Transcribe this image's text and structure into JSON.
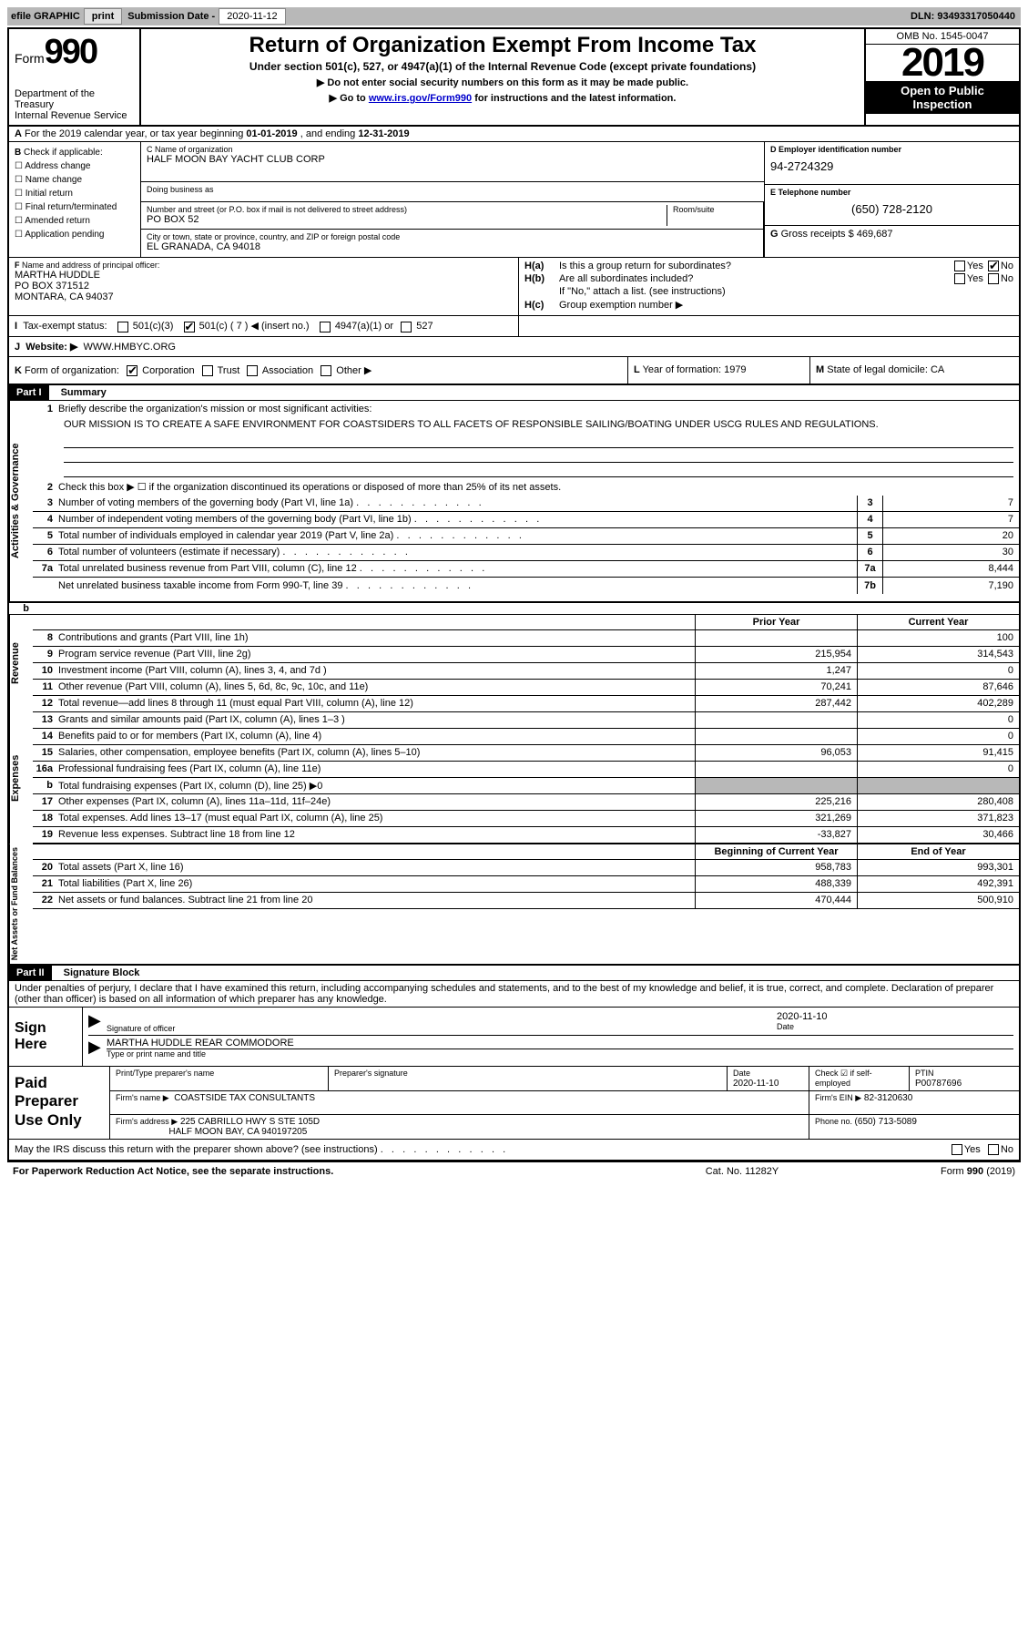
{
  "topbar": {
    "efile_label": "efile GRAPHIC",
    "print_btn": "print",
    "sub_label": "Submission Date -",
    "sub_date": "2020-11-12",
    "dln": "DLN: 93493317050440"
  },
  "header": {
    "form_word": "Form",
    "form_num": "990",
    "dept": "Department of the Treasury\nInternal Revenue Service",
    "title": "Return of Organization Exempt From Income Tax",
    "sub1": "Under section 501(c), 527, or 4947(a)(1) of the Internal Revenue Code (except private foundations)",
    "sub2": "▶ Do not enter social security numbers on this form as it may be made public.",
    "sub3_pre": "▶ Go to ",
    "sub3_link": "www.irs.gov/Form990",
    "sub3_post": " for instructions and the latest information.",
    "omb": "OMB No. 1545-0047",
    "year": "2019",
    "open1": "Open to Public",
    "open2": "Inspection"
  },
  "row_a": {
    "label": "A",
    "text_pre": "For the 2019 calendar year, or tax year beginning ",
    "begin": "01-01-2019",
    "mid": " , and ending ",
    "end": "12-31-2019"
  },
  "col_b": {
    "label": "B",
    "intro": " Check if applicable:",
    "opts": [
      "Address change",
      "Name change",
      "Initial return",
      "Final return/terminated",
      "Amended return",
      "Application pending"
    ]
  },
  "col_c": {
    "name_label": "C Name of organization",
    "name": "HALF MOON BAY YACHT CLUB CORP",
    "dba_label": "Doing business as",
    "street_label": "Number and street (or P.O. box if mail is not delivered to street address)",
    "street": "PO BOX 52",
    "room_label": "Room/suite",
    "city_label": "City or town, state or province, country, and ZIP or foreign postal code",
    "city": "EL GRANADA, CA  94018"
  },
  "col_d": {
    "ein_label": "D Employer identification number",
    "ein": "94-2724329",
    "phone_label": "E Telephone number",
    "phone": "(650) 728-2120",
    "gross_label": "G",
    "gross_text": " Gross receipts $ ",
    "gross": "469,687"
  },
  "col_f": {
    "label": "F",
    "text": " Name and address of principal officer:",
    "name": "MARTHA HUDDLE",
    "addr1": "PO BOX 371512",
    "addr2": "MONTARA, CA  94037"
  },
  "col_h": {
    "ha_lbl": "H(a)",
    "ha_txt": "Is this a group return for subordinates?",
    "hb_lbl": "H(b)",
    "hb_txt": "Are all subordinates included?",
    "hb_note": "If \"No,\" attach a list. (see instructions)",
    "hc_lbl": "H(c)",
    "hc_txt": "Group exemption number ▶",
    "yes": "Yes",
    "no": "No"
  },
  "row_i": {
    "label": "I",
    "text": "Tax-exempt status:",
    "o1": "501(c)(3)",
    "o2_pre": "501(c) ( ",
    "o2_num": "7",
    "o2_post": " ) ◀ (insert no.)",
    "o3": "4947(a)(1) or",
    "o4": "527"
  },
  "row_j": {
    "label": "J",
    "text": "Website: ▶",
    "url": "WWW.HMBYC.ORG"
  },
  "row_k": {
    "label": "K",
    "text": " Form of organization:",
    "o1": "Corporation",
    "o2": "Trust",
    "o3": "Association",
    "o4": "Other ▶",
    "l_label": "L",
    "l_text": " Year of formation: ",
    "l_val": "1979",
    "m_label": "M",
    "m_text": " State of legal domicile: ",
    "m_val": "CA"
  },
  "part1": {
    "hdr": "Part I",
    "title": "Summary",
    "tab_gov": "Activities & Governance",
    "tab_rev": "Revenue",
    "tab_exp": "Expenses",
    "tab_net": "Net Assets or Fund Balances",
    "l1_num": "1",
    "l1": "Briefly describe the organization's mission or most significant activities:",
    "mission": "OUR MISSION IS TO CREATE A SAFE ENVIRONMENT FOR COASTSIDERS TO ALL FACETS OF RESPONSIBLE SAILING/BOATING UNDER USCG RULES AND REGULATIONS.",
    "l2_num": "2",
    "l2": "Check this box ▶ ☐ if the organization discontinued its operations or disposed of more than 25% of its net assets.",
    "lines_ag": [
      {
        "n": "3",
        "t": "Number of voting members of the governing body (Part VI, line 1a)",
        "b": "3",
        "v": "7"
      },
      {
        "n": "4",
        "t": "Number of independent voting members of the governing body (Part VI, line 1b)",
        "b": "4",
        "v": "7"
      },
      {
        "n": "5",
        "t": "Total number of individuals employed in calendar year 2019 (Part V, line 2a)",
        "b": "5",
        "v": "20"
      },
      {
        "n": "6",
        "t": "Total number of volunteers (estimate if necessary)",
        "b": "6",
        "v": "30"
      },
      {
        "n": "7a",
        "t": "Total unrelated business revenue from Part VIII, column (C), line 12",
        "b": "7a",
        "v": "8,444"
      }
    ],
    "l7b_n": "",
    "l7b_t": "Net unrelated business taxable income from Form 990-T, line 39",
    "l7b_b": "7b",
    "l7b_v": "7,190",
    "col_prior": "Prior Year",
    "col_current": "Current Year",
    "col_begin": "Beginning of Current Year",
    "col_end": "End of Year",
    "rev": [
      {
        "n": "8",
        "t": "Contributions and grants (Part VIII, line 1h)",
        "c1": "",
        "c2": "100"
      },
      {
        "n": "9",
        "t": "Program service revenue (Part VIII, line 2g)",
        "c1": "215,954",
        "c2": "314,543"
      },
      {
        "n": "10",
        "t": "Investment income (Part VIII, column (A), lines 3, 4, and 7d )",
        "c1": "1,247",
        "c2": "0"
      },
      {
        "n": "11",
        "t": "Other revenue (Part VIII, column (A), lines 5, 6d, 8c, 9c, 10c, and 11e)",
        "c1": "70,241",
        "c2": "87,646"
      },
      {
        "n": "12",
        "t": "Total revenue—add lines 8 through 11 (must equal Part VIII, column (A), line 12)",
        "c1": "287,442",
        "c2": "402,289"
      }
    ],
    "exp": [
      {
        "n": "13",
        "t": "Grants and similar amounts paid (Part IX, column (A), lines 1–3 )",
        "c1": "",
        "c2": "0"
      },
      {
        "n": "14",
        "t": "Benefits paid to or for members (Part IX, column (A), line 4)",
        "c1": "",
        "c2": "0"
      },
      {
        "n": "15",
        "t": "Salaries, other compensation, employee benefits (Part IX, column (A), lines 5–10)",
        "c1": "96,053",
        "c2": "91,415"
      },
      {
        "n": "16a",
        "t": "Professional fundraising fees (Part IX, column (A), line 11e)",
        "c1": "",
        "c2": "0"
      },
      {
        "n": "b",
        "t": "Total fundraising expenses (Part IX, column (D), line 25) ▶0",
        "c1": "GREY",
        "c2": "GREY"
      },
      {
        "n": "17",
        "t": "Other expenses (Part IX, column (A), lines 11a–11d, 11f–24e)",
        "c1": "225,216",
        "c2": "280,408"
      },
      {
        "n": "18",
        "t": "Total expenses. Add lines 13–17 (must equal Part IX, column (A), line 25)",
        "c1": "321,269",
        "c2": "371,823"
      },
      {
        "n": "19",
        "t": "Revenue less expenses. Subtract line 18 from line 12",
        "c1": "-33,827",
        "c2": "30,466"
      }
    ],
    "net": [
      {
        "n": "20",
        "t": "Total assets (Part X, line 16)",
        "c1": "958,783",
        "c2": "993,301"
      },
      {
        "n": "21",
        "t": "Total liabilities (Part X, line 26)",
        "c1": "488,339",
        "c2": "492,391"
      },
      {
        "n": "22",
        "t": "Net assets or fund balances. Subtract line 21 from line 20",
        "c1": "470,444",
        "c2": "500,910"
      }
    ]
  },
  "part2": {
    "hdr": "Part II",
    "title": "Signature Block",
    "decl": "Under penalties of perjury, I declare that I have examined this return, including accompanying schedules and statements, and to the best of my knowledge and belief, it is true, correct, and complete. Declaration of preparer (other than officer) is based on all information of which preparer has any knowledge.",
    "sign_here": "Sign Here",
    "sig_officer_lbl": "Signature of officer",
    "sig_date": "2020-11-10",
    "date_lbl": "Date",
    "officer_name": "MARTHA HUDDLE  REAR COMMODORE",
    "officer_lbl": "Type or print name and title",
    "paid": "Paid Preparer Use Only",
    "p_name_lbl": "Print/Type preparer's name",
    "p_sig_lbl": "Preparer's signature",
    "p_date_lbl": "Date",
    "p_date": "2020-11-10",
    "p_check_lbl": "Check ☑ if self-employed",
    "p_ptin_lbl": "PTIN",
    "p_ptin": "P00787696",
    "firm_name_lbl": "Firm's name   ▶",
    "firm_name": "COASTSIDE TAX CONSULTANTS",
    "firm_ein_lbl": "Firm's EIN ▶",
    "firm_ein": "82-3120630",
    "firm_addr_lbl": "Firm's address ▶",
    "firm_addr1": "225 CABRILLO HWY S STE 105D",
    "firm_addr2": "HALF MOON BAY, CA  940197205",
    "firm_phone_lbl": "Phone no. ",
    "firm_phone": "(650) 713-5089",
    "discuss": "May the IRS discuss this return with the preparer shown above? (see instructions)",
    "foot_l": "For Paperwork Reduction Act Notice, see the separate instructions.",
    "foot_m": "Cat. No. 11282Y",
    "foot_r_pre": "Form ",
    "foot_r_form": "990",
    "foot_r_post": " (2019)"
  }
}
